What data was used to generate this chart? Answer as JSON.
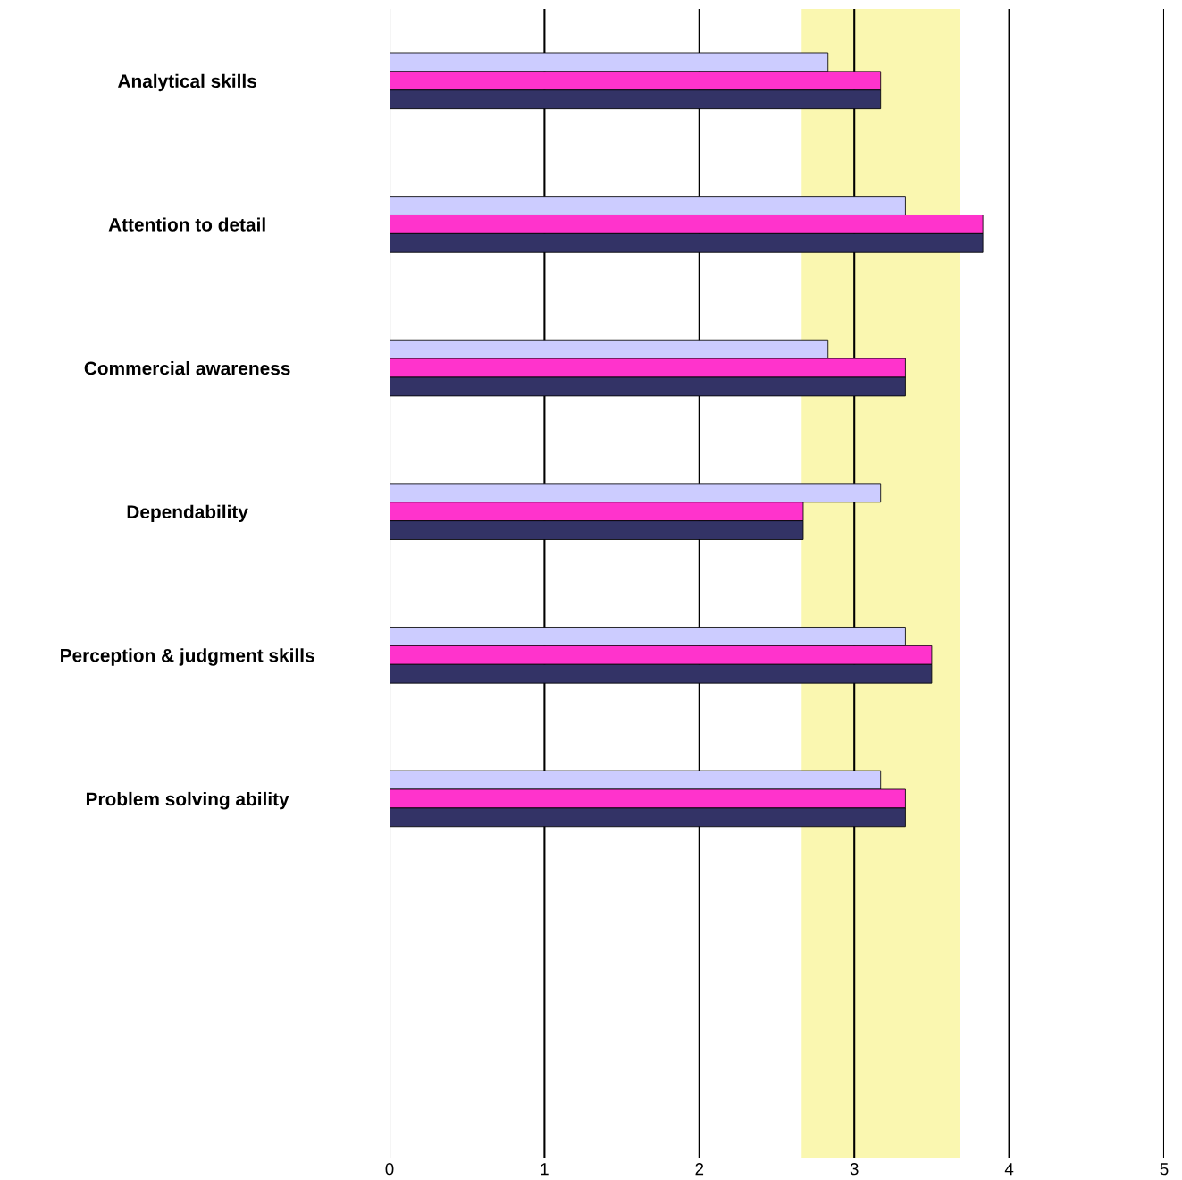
{
  "chart_data": {
    "type": "bar",
    "orientation": "horizontal",
    "categories": [
      "Analytical skills",
      "Attention to detail",
      "Commercial awareness",
      "Dependability",
      "Perception & judgment skills",
      "Problem solving ability",
      null,
      null
    ],
    "series": [
      {
        "color": "#ccccff",
        "values": [
          2.83,
          3.33,
          2.83,
          3.17,
          3.33,
          3.17,
          null,
          null
        ]
      },
      {
        "color": "#ff33cc",
        "values": [
          3.17,
          3.83,
          3.33,
          2.67,
          3.5,
          3.33,
          null,
          null
        ]
      },
      {
        "color": "#333366",
        "values": [
          3.17,
          3.83,
          3.33,
          2.67,
          3.5,
          3.33,
          null,
          null
        ]
      }
    ],
    "xlim": [
      0,
      5
    ],
    "xticks": [
      0,
      1,
      2,
      3,
      4,
      5
    ],
    "grid": "x",
    "legend": false,
    "bands": [
      {
        "axis": "x",
        "from": 2.66,
        "to": 3.68,
        "color": "#faf7b0"
      }
    ]
  }
}
